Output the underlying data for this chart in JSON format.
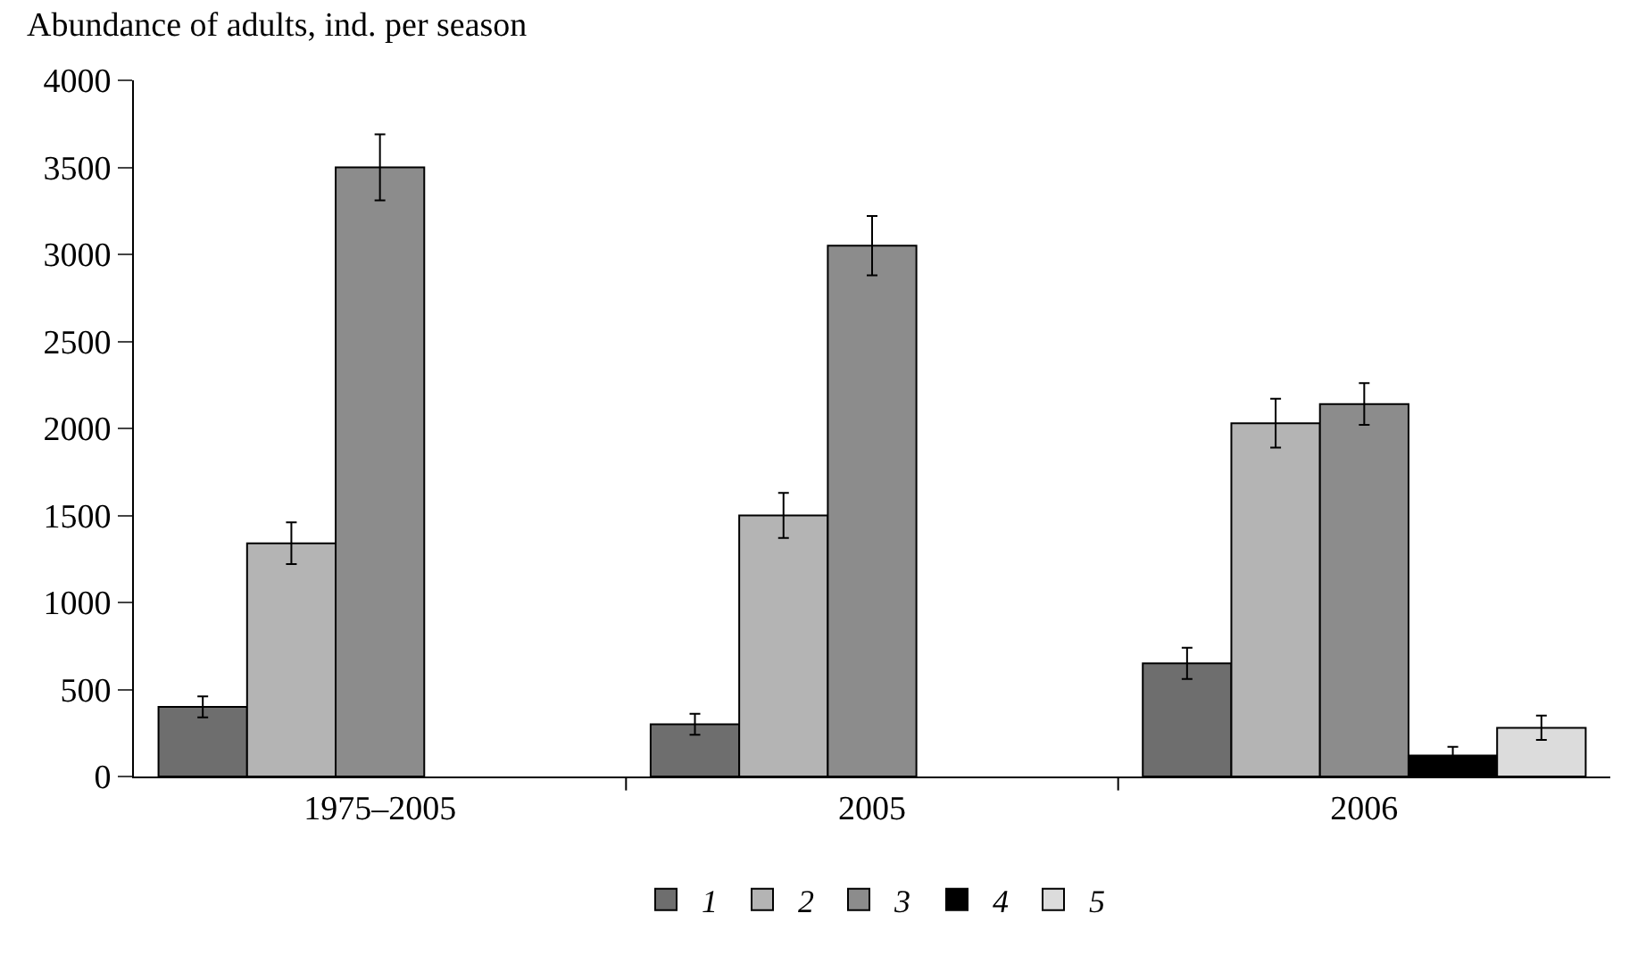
{
  "chart_data": {
    "type": "bar",
    "ylabel": "Abundance of adults, ind. per season",
    "categories": [
      "1975–2005",
      "2005",
      "2006"
    ],
    "series": [
      {
        "name": "1",
        "color": "#6e6e6e",
        "values": [
          400,
          300,
          650
        ],
        "errors": [
          60,
          60,
          90
        ]
      },
      {
        "name": "2",
        "color": "#b4b4b4",
        "values": [
          1340,
          1500,
          2030
        ],
        "errors": [
          120,
          130,
          140
        ]
      },
      {
        "name": "3",
        "color": "#8c8c8c",
        "values": [
          3500,
          3050,
          2140
        ],
        "errors": [
          190,
          170,
          120
        ]
      },
      {
        "name": "4",
        "color": "#000000",
        "values": [
          null,
          null,
          120
        ],
        "errors": [
          null,
          null,
          50
        ]
      },
      {
        "name": "5",
        "color": "#dcdcdc",
        "values": [
          null,
          null,
          280
        ],
        "errors": [
          null,
          null,
          70
        ]
      }
    ],
    "ylim": [
      0,
      4000
    ],
    "yticks": [
      0,
      500,
      1000,
      1500,
      2000,
      2500,
      3000,
      3500,
      4000
    ],
    "legend": "bottom"
  }
}
